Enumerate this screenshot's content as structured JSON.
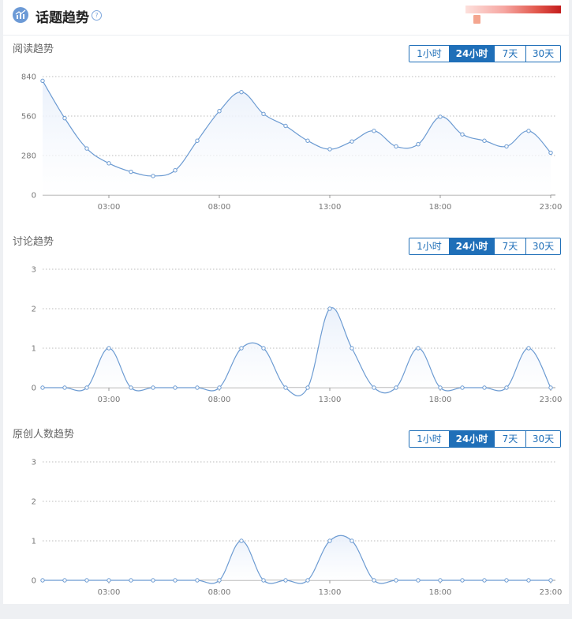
{
  "header": {
    "title": "话题趋势",
    "help": "?"
  },
  "tab_labels": [
    "1小时",
    "24小时",
    "7天",
    "30天"
  ],
  "active_tab": 1,
  "chart_data": [
    {
      "type": "area",
      "title": "阅读趋势",
      "x": [
        "00:00",
        "01:00",
        "02:00",
        "03:00",
        "04:00",
        "05:00",
        "06:00",
        "07:00",
        "08:00",
        "09:00",
        "10:00",
        "11:00",
        "12:00",
        "13:00",
        "14:00",
        "15:00",
        "16:00",
        "17:00",
        "18:00",
        "19:00",
        "20:00",
        "21:00",
        "22:00",
        "23:00"
      ],
      "xticks": [
        "03:00",
        "08:00",
        "13:00",
        "18:00",
        "23:00"
      ],
      "yticks": [
        0,
        280,
        560,
        840
      ],
      "ylim": [
        0,
        840
      ],
      "series": [
        {
          "values": [
            810,
            545,
            330,
            225,
            165,
            135,
            175,
            385,
            595,
            730,
            575,
            490,
            385,
            325,
            380,
            455,
            345,
            360,
            555,
            430,
            385,
            345,
            455,
            300
          ]
        }
      ]
    },
    {
      "type": "area",
      "title": "讨论趋势",
      "x": [
        "00:00",
        "01:00",
        "02:00",
        "03:00",
        "04:00",
        "05:00",
        "06:00",
        "07:00",
        "08:00",
        "09:00",
        "10:00",
        "11:00",
        "12:00",
        "13:00",
        "14:00",
        "15:00",
        "16:00",
        "17:00",
        "18:00",
        "19:00",
        "20:00",
        "21:00",
        "22:00",
        "23:00"
      ],
      "xticks": [
        "03:00",
        "08:00",
        "13:00",
        "18:00",
        "23:00"
      ],
      "yticks": [
        0,
        1,
        2,
        3
      ],
      "ylim": [
        0,
        3
      ],
      "series": [
        {
          "values": [
            0,
            0,
            0,
            1,
            0,
            0,
            0,
            0,
            0,
            1,
            1,
            0,
            0,
            2,
            1,
            0,
            0,
            1,
            0,
            0,
            0,
            0,
            1,
            0
          ]
        }
      ]
    },
    {
      "type": "area",
      "title": "原创人数趋势",
      "x": [
        "00:00",
        "01:00",
        "02:00",
        "03:00",
        "04:00",
        "05:00",
        "06:00",
        "07:00",
        "08:00",
        "09:00",
        "10:00",
        "11:00",
        "12:00",
        "13:00",
        "14:00",
        "15:00",
        "16:00",
        "17:00",
        "18:00",
        "19:00",
        "20:00",
        "21:00",
        "22:00",
        "23:00"
      ],
      "xticks": [
        "03:00",
        "08:00",
        "13:00",
        "18:00",
        "23:00"
      ],
      "yticks": [
        0,
        1,
        2,
        3
      ],
      "ylim": [
        0,
        3
      ],
      "series": [
        {
          "values": [
            0,
            0,
            0,
            0,
            0,
            0,
            0,
            0,
            0,
            1,
            0,
            0,
            0,
            1,
            1,
            0,
            0,
            0,
            0,
            0,
            0,
            0,
            0,
            0
          ]
        }
      ]
    }
  ],
  "colors": {
    "line": "#6c9bd2",
    "fill": "#e9f0fb",
    "accent": "#1f6fb8"
  }
}
